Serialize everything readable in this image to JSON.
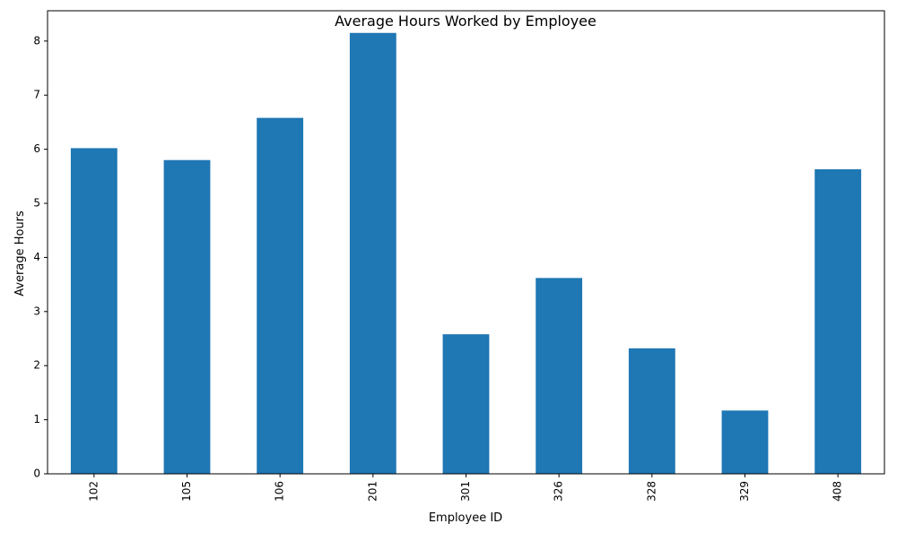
{
  "chart_data": {
    "type": "bar",
    "title": "Average Hours Worked by Employee",
    "xlabel": "Employee ID",
    "ylabel": "Average Hours",
    "categories": [
      "102",
      "105",
      "106",
      "201",
      "301",
      "326",
      "328",
      "329",
      "408"
    ],
    "values": [
      6.02,
      5.8,
      6.58,
      8.15,
      2.58,
      3.62,
      2.32,
      1.17,
      5.63
    ],
    "ylim": [
      0,
      8.56
    ],
    "yticks": [
      0,
      1,
      2,
      3,
      4,
      5,
      6,
      7,
      8
    ],
    "grid": false,
    "legend": "none",
    "bar_color": "#1f77b4"
  }
}
